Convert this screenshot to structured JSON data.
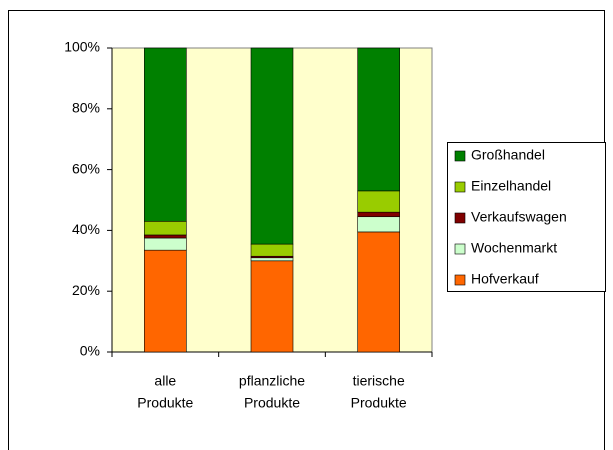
{
  "chart_data": {
    "type": "stacked_bar_100",
    "categories": [
      [
        "alle",
        "Produkte"
      ],
      [
        "pflanzliche",
        "Produkte"
      ],
      [
        "tierische",
        "Produkte"
      ]
    ],
    "series": [
      {
        "name": "Hofverkauf",
        "color": "#ff6600",
        "values": [
          33.5,
          30,
          39.5
        ]
      },
      {
        "name": "Wochenmarkt",
        "color": "#ccffcc",
        "values": [
          4,
          1,
          5
        ]
      },
      {
        "name": "Verkaufswagen",
        "color": "#800000",
        "values": [
          1,
          0.5,
          1.5
        ]
      },
      {
        "name": "Einzelhandel",
        "color": "#99cc00",
        "values": [
          4.5,
          4,
          7
        ]
      },
      {
        "name": "Großhandel",
        "color": "#008000",
        "values": [
          57,
          64.5,
          47
        ]
      }
    ],
    "ylim": [
      0,
      100
    ],
    "yticks": [
      {
        "value": 0,
        "label": "0%"
      },
      {
        "value": 20,
        "label": "20%"
      },
      {
        "value": 40,
        "label": "40%"
      },
      {
        "value": 60,
        "label": "60%"
      },
      {
        "value": 80,
        "label": "80%"
      },
      {
        "value": 100,
        "label": "100%"
      }
    ],
    "legend": "right",
    "plot_background": "#ffffcc"
  }
}
